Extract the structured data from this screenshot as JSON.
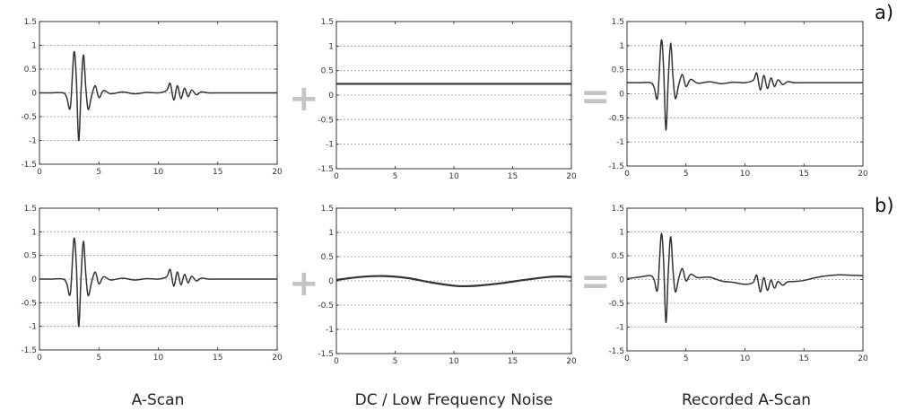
{
  "row_labels": [
    "a)",
    "b)"
  ],
  "column_labels": [
    "A-Scan",
    "DC / Low Frequency Noise",
    "Recorded A-Scan"
  ],
  "operators": {
    "plus": "+",
    "equals": "="
  },
  "colors": {
    "trace": "#333333",
    "axis": "#222222",
    "grid": "#999999",
    "operator": "#c4c4c4"
  },
  "chart_data": [
    {
      "type": "line",
      "panel": "a-ascan",
      "xlim": [
        0,
        20
      ],
      "ylim": [
        -1.5,
        1.5
      ],
      "xticks": [
        "0",
        "5",
        "10",
        "15",
        "20"
      ],
      "yticks": [
        "-1.5",
        "-1",
        "-0.5",
        "0",
        "0.5",
        "1",
        "1.5"
      ],
      "y_grid": true,
      "x_grid": false,
      "x": [
        0,
        1,
        2,
        2.3,
        2.6,
        2.9,
        3.1,
        3.3,
        3.5,
        3.7,
        3.9,
        4.1,
        4.4,
        4.7,
        5.0,
        5.4,
        6,
        7,
        8,
        9,
        10,
        10.7,
        11.0,
        11.3,
        11.6,
        11.9,
        12.2,
        12.5,
        12.8,
        13.2,
        13.6,
        14.2,
        15,
        16,
        17,
        18,
        19,
        20
      ],
      "y": [
        0,
        0,
        0,
        -0.1,
        -0.3,
        0.85,
        0.3,
        -1.0,
        0.05,
        0.8,
        0.1,
        -0.35,
        -0.05,
        0.15,
        -0.1,
        0.05,
        -0.02,
        0.02,
        -0.02,
        0.01,
        0,
        0.05,
        0.2,
        -0.15,
        0.15,
        -0.12,
        0.1,
        -0.08,
        0.06,
        -0.04,
        0.02,
        0,
        0,
        0,
        0,
        0,
        0,
        0
      ]
    },
    {
      "type": "line",
      "panel": "a-noise",
      "xlim": [
        0,
        20
      ],
      "ylim": [
        -1.5,
        1.5
      ],
      "xticks": [
        "0",
        "5",
        "10",
        "15",
        "20"
      ],
      "yticks": [
        "-1.5",
        "-1",
        "-0.5",
        "0",
        "0.5",
        "1",
        "1.5"
      ],
      "y_grid": true,
      "x_grid": false,
      "x": [
        0,
        20
      ],
      "y": [
        0.23,
        0.23
      ]
    },
    {
      "type": "line",
      "panel": "a-recorded",
      "xlim": [
        0,
        20
      ],
      "ylim": [
        -1.5,
        1.5
      ],
      "xticks": [
        "0",
        "5",
        "10",
        "15",
        "20"
      ],
      "yticks": [
        "-1.5",
        "-1",
        "-0.5",
        "0",
        "0.5",
        "1",
        "1.5"
      ],
      "y_grid": true,
      "x_grid": false,
      "x": [
        0,
        1,
        2,
        2.3,
        2.6,
        2.9,
        3.1,
        3.3,
        3.5,
        3.7,
        3.9,
        4.1,
        4.4,
        4.7,
        5.0,
        5.4,
        6,
        7,
        8,
        9,
        10,
        10.7,
        11.0,
        11.3,
        11.6,
        11.9,
        12.2,
        12.5,
        12.8,
        13.2,
        13.6,
        14.2,
        15,
        16,
        17,
        18,
        19,
        20
      ],
      "y": [
        0.23,
        0.23,
        0.23,
        0.13,
        -0.07,
        1.1,
        0.55,
        -0.75,
        0.3,
        1.05,
        0.35,
        -0.1,
        0.2,
        0.4,
        0.15,
        0.3,
        0.22,
        0.25,
        0.21,
        0.24,
        0.23,
        0.28,
        0.43,
        0.08,
        0.38,
        0.11,
        0.33,
        0.15,
        0.29,
        0.19,
        0.25,
        0.23,
        0.23,
        0.23,
        0.23,
        0.23,
        0.23,
        0.23
      ]
    },
    {
      "type": "line",
      "panel": "b-ascan",
      "xlim": [
        0,
        20
      ],
      "ylim": [
        -1.5,
        1.5
      ],
      "xticks": [
        "0",
        "5",
        "10",
        "15",
        "20"
      ],
      "yticks": [
        "-1.5",
        "-1",
        "-0.5",
        "0",
        "0.5",
        "1",
        "1.5"
      ],
      "y_grid": true,
      "x_grid": false,
      "x": [
        0,
        1,
        2,
        2.3,
        2.6,
        2.9,
        3.1,
        3.3,
        3.5,
        3.7,
        3.9,
        4.1,
        4.4,
        4.7,
        5.0,
        5.4,
        6,
        7,
        8,
        9,
        10,
        10.7,
        11.0,
        11.3,
        11.6,
        11.9,
        12.2,
        12.5,
        12.8,
        13.2,
        13.6,
        14.2,
        15,
        16,
        17,
        18,
        19,
        20
      ],
      "y": [
        0,
        0,
        0,
        -0.1,
        -0.3,
        0.85,
        0.3,
        -1.0,
        0.05,
        0.8,
        0.1,
        -0.35,
        -0.05,
        0.15,
        -0.1,
        0.05,
        -0.02,
        0.02,
        -0.02,
        0.01,
        0,
        0.05,
        0.2,
        -0.15,
        0.15,
        -0.12,
        0.1,
        -0.08,
        0.06,
        -0.04,
        0.02,
        0,
        0,
        0,
        0,
        0,
        0,
        0
      ]
    },
    {
      "type": "line",
      "panel": "b-noise",
      "xlim": [
        0,
        20
      ],
      "ylim": [
        -1.5,
        1.5
      ],
      "xticks": [
        "0",
        "5",
        "10",
        "15",
        "20"
      ],
      "yticks": [
        "-1.5",
        "-1",
        "-0.5",
        "0",
        "0.5",
        "1",
        "1.5"
      ],
      "y_grid": true,
      "x_grid": false,
      "x": [
        0,
        2,
        4,
        6,
        8,
        10,
        11,
        12,
        14,
        16,
        18,
        19,
        20
      ],
      "y": [
        0.02,
        0.08,
        0.1,
        0.06,
        -0.03,
        -0.1,
        -0.11,
        -0.1,
        -0.05,
        0.02,
        0.08,
        0.09,
        0.08
      ]
    },
    {
      "type": "line",
      "panel": "b-recorded",
      "xlim": [
        0,
        20
      ],
      "ylim": [
        -1.5,
        1.5
      ],
      "xticks": [
        "0",
        "5",
        "10",
        "15",
        "20"
      ],
      "yticks": [
        "-1.5",
        "-1",
        "-0.5",
        "0",
        "0.5",
        "1",
        "1.5"
      ],
      "y_grid": true,
      "x_grid": false,
      "x": [
        0,
        1,
        2,
        2.3,
        2.6,
        2.9,
        3.1,
        3.3,
        3.5,
        3.7,
        3.9,
        4.1,
        4.4,
        4.7,
        5.0,
        5.4,
        6,
        7,
        8,
        9,
        10,
        10.7,
        11.0,
        11.3,
        11.6,
        11.9,
        12.2,
        12.5,
        12.8,
        13.2,
        13.6,
        14.2,
        15,
        16,
        17,
        18,
        19,
        20
      ],
      "y": [
        0.02,
        0.05,
        0.08,
        -0.01,
        -0.2,
        0.95,
        0.4,
        -0.9,
        0.15,
        0.9,
        0.2,
        -0.26,
        0.04,
        0.23,
        -0.03,
        0.11,
        0.04,
        0.05,
        -0.03,
        -0.06,
        -0.1,
        -0.06,
        0.09,
        -0.26,
        0.04,
        -0.23,
        -0.01,
        -0.18,
        -0.04,
        -0.12,
        -0.05,
        -0.04,
        -0.02,
        0.04,
        0.08,
        0.1,
        0.09,
        0.08
      ]
    }
  ]
}
